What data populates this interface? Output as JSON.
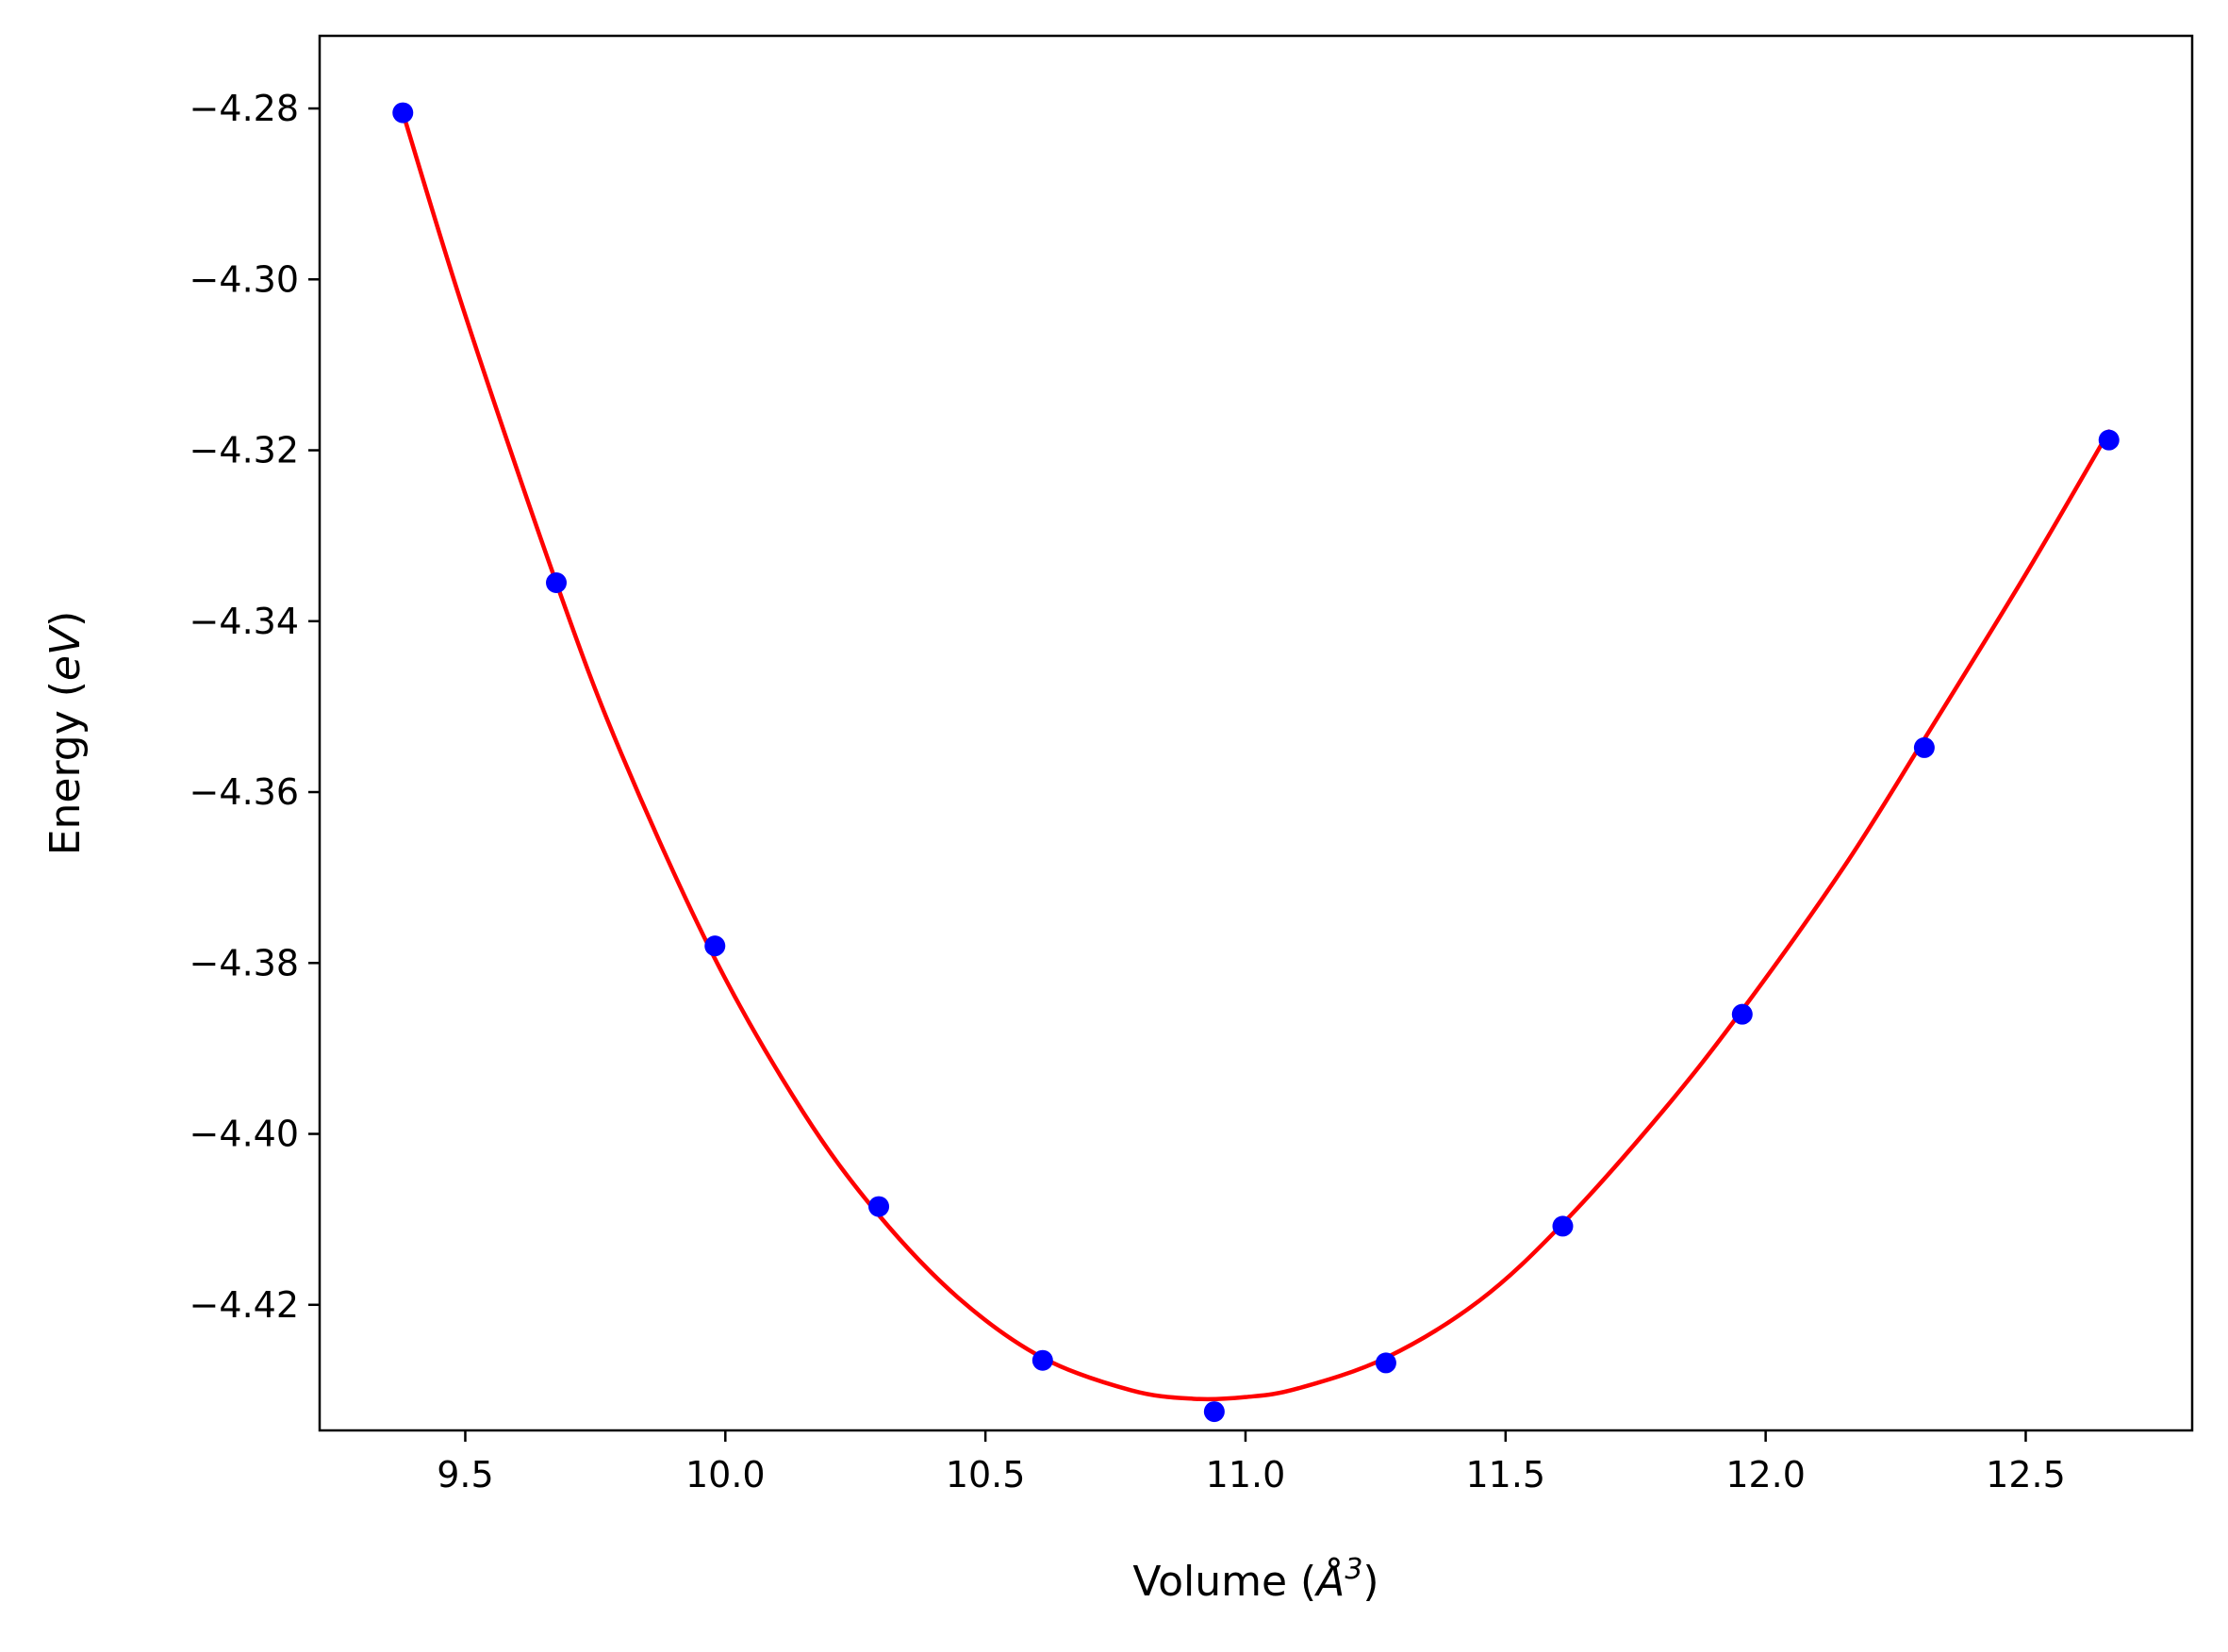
{
  "chart_data": {
    "type": "scatter",
    "xlabel_prefix": "Volume (",
    "xlabel_unit": "Å",
    "xlabel_power": "3",
    "xlabel_suffix": ")",
    "ylabel_prefix": "Energy (",
    "ylabel_unit": "eV",
    "ylabel_suffix": ")",
    "xlim": [
      9.22,
      12.82
    ],
    "ylim": [
      -4.4347,
      -4.2715
    ],
    "xticks": [
      9.5,
      10.0,
      10.5,
      11.0,
      11.5,
      12.0,
      12.5
    ],
    "xtick_labels": [
      "9.5",
      "10.0",
      "10.5",
      "11.0",
      "11.5",
      "12.0",
      "12.5"
    ],
    "yticks": [
      -4.28,
      -4.3,
      -4.32,
      -4.34,
      -4.36,
      -4.38,
      -4.4,
      -4.42
    ],
    "ytick_labels": [
      "−4.28",
      "−4.30",
      "−4.32",
      "−4.34",
      "−4.36",
      "−4.38",
      "−4.40",
      "−4.42"
    ],
    "grid": false,
    "series": [
      {
        "kind": "points",
        "color": "#0000ff",
        "x": [
          9.38,
          9.675,
          9.98,
          10.295,
          10.61,
          10.94,
          11.27,
          11.61,
          11.955,
          12.305,
          12.66
        ],
        "y": [
          -4.2805,
          -4.3355,
          -4.378,
          -4.4085,
          -4.4265,
          -4.4325,
          -4.4268,
          -4.4108,
          -4.386,
          -4.3548,
          -4.3188
        ]
      },
      {
        "kind": "fit-curve",
        "color": "#ff0000",
        "x": [
          9.38,
          9.5,
          9.675,
          9.8,
          9.98,
          10.15,
          10.295,
          10.45,
          10.61,
          10.78,
          10.9,
          11.0,
          11.1,
          11.27,
          11.45,
          11.61,
          11.8,
          11.955,
          12.15,
          12.305,
          12.5,
          12.66
        ],
        "y": [
          -4.2805,
          -4.3042,
          -4.3355,
          -4.3555,
          -4.3795,
          -4.3975,
          -4.4095,
          -4.4193,
          -4.4262,
          -4.43,
          -4.431,
          -4.4308,
          -4.4298,
          -4.4262,
          -4.4195,
          -4.4105,
          -4.3975,
          -4.3855,
          -4.3688,
          -4.3538,
          -4.3345,
          -4.3178
        ]
      }
    ]
  }
}
